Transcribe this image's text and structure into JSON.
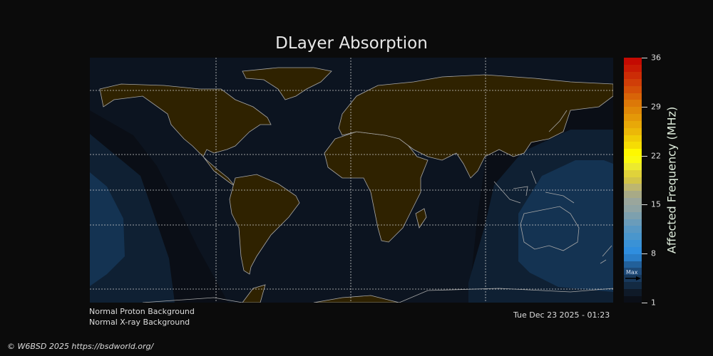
{
  "title": "DLayer Absorption",
  "colorbar": {
    "label": "Affected Frequency (MHz)",
    "ticks": [
      "36",
      "29",
      "22",
      "15",
      "8",
      "1"
    ],
    "min": 1,
    "max": 36,
    "max_marker_label": "Max",
    "max_marker_value": 4.5,
    "colors": [
      "#0b0f17",
      "#0f1a28",
      "#132a42",
      "#18395c",
      "#1d4a78",
      "#22609a",
      "#2a7ec8",
      "#2f8ede",
      "#3a92d6",
      "#4a96cc",
      "#5898c4",
      "#6a9cba",
      "#7da0ae",
      "#8fa4a4",
      "#9aa69c",
      "#a8aa86",
      "#bdb670",
      "#d2c448",
      "#e0d23a",
      "#ecea2e",
      "#fafa10",
      "#fef800",
      "#f6dc04",
      "#f0cc06",
      "#ecb808",
      "#e8a808",
      "#e49808",
      "#e08808",
      "#dc7808",
      "#d86408",
      "#d45008",
      "#d03e08",
      "#cc2c06",
      "#c81a04",
      "#c40a02"
    ]
  },
  "status": {
    "proton": "Normal Proton Background",
    "xray": "Normal X-ray Background",
    "timestamp": "Tue Dec 23 2025 - 01:23"
  },
  "credit": "© W6BSD 2025 https://bsdworld.org/",
  "map_colors": {
    "day_ocean": "#0c1420",
    "night_band": "#0a0e16",
    "mid_absorption": "#0f2033",
    "high_absorption": "#143352",
    "land": "#2f2200",
    "coast": "#a8a8a8"
  }
}
